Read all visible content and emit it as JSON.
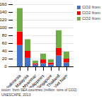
{
  "chart_data": {
    "type": "bar",
    "stacked": true,
    "categories": [
      "Indonesia",
      "Malaysia",
      "Myanmar",
      "Philippines",
      "Singapore",
      "Thailand",
      "Viet Nam"
    ],
    "series": [
      {
        "name": "CO2 from",
        "color": "#4472c4",
        "values": [
          55,
          22,
          5,
          8,
          5,
          28,
          10
        ]
      },
      {
        "name": "CO2 from",
        "color": "#ff0000",
        "values": [
          35,
          18,
          3,
          10,
          5,
          20,
          10
        ]
      },
      {
        "name": "CO2 from",
        "color": "#70ad47",
        "values": [
          60,
          30,
          7,
          15,
          8,
          45,
          18
        ]
      }
    ],
    "ylim": [
      0,
      160
    ],
    "yticks": [
      0,
      20,
      40,
      60,
      80,
      100,
      120,
      140,
      160
    ],
    "grid": true,
    "legend": "right",
    "annotations": [
      "ission  from SEA countries (million  tons of CO2)",
      "UNESCAPE, 2013"
    ]
  }
}
